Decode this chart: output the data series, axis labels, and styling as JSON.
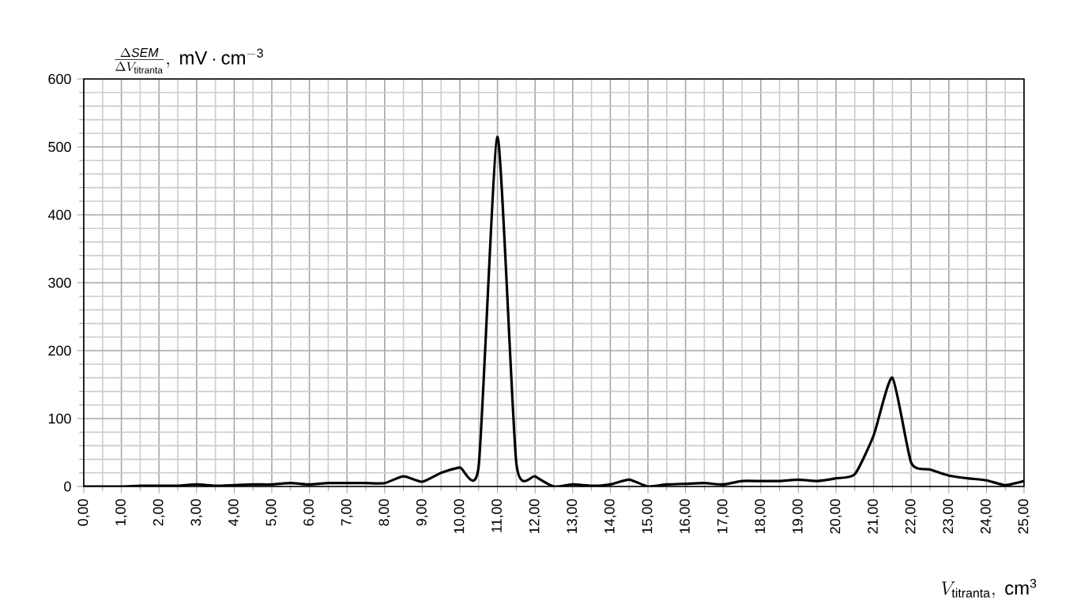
{
  "chart_data": {
    "type": "line",
    "ylabel": "\\frac{\\Delta \\mathit{SEM}}{\\Delta V_{\\mathrm{titranta}}},\\ \\mathrm{mV\\cdot cm^{-3}}",
    "xlabel": "V_{\\mathrm{titranta}},\\ \\mathrm{cm^{3}}",
    "x": [
      0,
      0.5,
      1,
      1.5,
      2,
      2.5,
      3,
      3.5,
      4,
      4.5,
      5,
      5.5,
      6,
      6.5,
      7,
      7.5,
      8,
      8.5,
      9,
      9.5,
      10,
      10.5,
      11,
      11.5,
      12,
      12.5,
      13,
      13.5,
      14,
      14.5,
      15,
      15.5,
      16,
      16.5,
      17,
      17.5,
      18,
      18.5,
      19,
      19.5,
      20,
      20.5,
      21,
      21.5,
      22,
      22.5,
      23,
      23.5,
      24,
      24.5,
      25
    ],
    "series": [
      {
        "color": "#000000",
        "values": [
          0,
          0,
          0,
          1,
          1,
          1,
          3,
          1,
          2,
          3,
          3,
          5,
          3,
          5,
          5,
          5,
          5,
          15,
          7,
          20,
          28,
          30,
          515,
          35,
          15,
          0,
          3,
          1,
          3,
          10,
          0,
          3,
          4,
          5,
          3,
          8,
          8,
          8,
          10,
          8,
          12,
          18,
          75,
          160,
          35,
          25,
          16,
          12,
          9,
          2,
          8
        ]
      }
    ],
    "xlim": [
      0,
      25
    ],
    "ylim": [
      0,
      600
    ],
    "xticks": [
      {
        "value": 0,
        "label": "0,00"
      },
      {
        "value": 1,
        "label": "1,00"
      },
      {
        "value": 2,
        "label": "2,00"
      },
      {
        "value": 3,
        "label": "3,00"
      },
      {
        "value": 4,
        "label": "4,00"
      },
      {
        "value": 5,
        "label": "5,00"
      },
      {
        "value": 6,
        "label": "6,00"
      },
      {
        "value": 7,
        "label": "7,00"
      },
      {
        "value": 8,
        "label": "8,00"
      },
      {
        "value": 9,
        "label": "9,00"
      },
      {
        "value": 10,
        "label": "10,00"
      },
      {
        "value": 11,
        "label": "11,00"
      },
      {
        "value": 12,
        "label": "12,00"
      },
      {
        "value": 13,
        "label": "13,00"
      },
      {
        "value": 14,
        "label": "14,00"
      },
      {
        "value": 15,
        "label": "15,00"
      },
      {
        "value": 16,
        "label": "16,00"
      },
      {
        "value": 17,
        "label": "17,00"
      },
      {
        "value": 18,
        "label": "18,00"
      },
      {
        "value": 19,
        "label": "19,00"
      },
      {
        "value": 20,
        "label": "20,00"
      },
      {
        "value": 21,
        "label": "21,00"
      },
      {
        "value": 22,
        "label": "22,00"
      },
      {
        "value": 23,
        "label": "23,00"
      },
      {
        "value": 24,
        "label": "24,00"
      },
      {
        "value": 25,
        "label": "25,00"
      }
    ],
    "yticks": [
      0,
      100,
      200,
      300,
      400,
      500,
      600
    ],
    "grid": true,
    "marker": "none",
    "line_style": "solid"
  }
}
